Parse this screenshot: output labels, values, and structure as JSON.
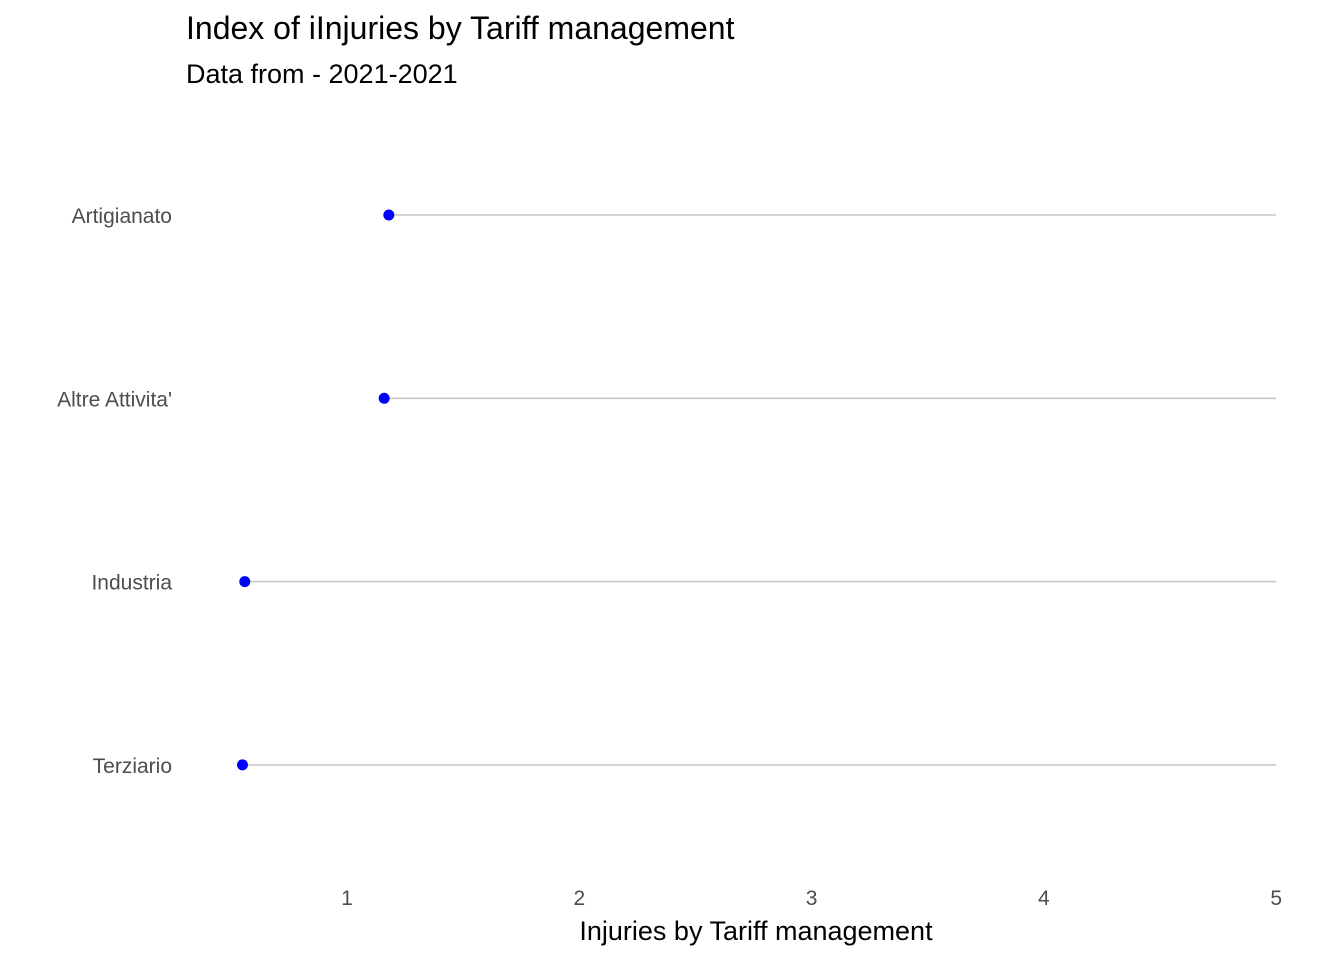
{
  "chart_data": {
    "type": "lollipop",
    "orientation": "horizontal",
    "title": "Index of iInjuries by Tariff management",
    "subtitle": "Data  from - 2021-2021",
    "xlabel": "Injuries by Tariff management",
    "ylabel": "",
    "xlim": [
      0.3,
      5
    ],
    "x_ticks": [
      1,
      2,
      3,
      4,
      5
    ],
    "categories": [
      "Artigianato",
      "Altre Attivita'",
      "Industria",
      "Terziario"
    ],
    "values": [
      1.18,
      1.16,
      0.56,
      0.55
    ],
    "line_end": 5,
    "grid": false,
    "colors": {
      "point": "#0000ff",
      "segment": "#c8c8c8",
      "tick_text": "#4d4d4d",
      "text": "#000000"
    }
  }
}
